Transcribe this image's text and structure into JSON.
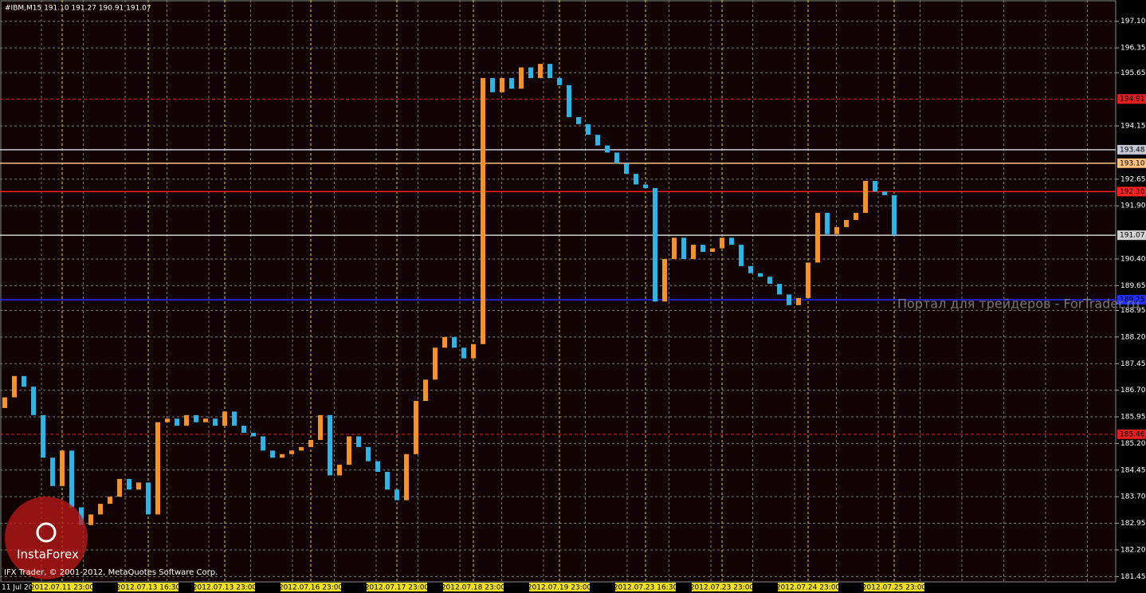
{
  "chart_data": {
    "type": "candlestick",
    "title": "#IBM,M15  191.10 191.27 190.91 191.07",
    "watermark": "Портал для трейдеров - ForTrader.ru",
    "footer": "IFX Trader, © 2001-2012, MetaQuotes Software Corp.",
    "logo": "InstaForex",
    "up_color": "#f7931e",
    "down_color": "#29b6e8",
    "grid": true,
    "ylim": [
      181.3,
      197.7
    ],
    "yticks": [
      {
        "value": 197.1,
        "label": "197.10"
      },
      196.35,
      195.65,
      194.15,
      192.65,
      {
        "value": 191.9,
        "label": "191.90"
      },
      {
        "value": 190.4,
        "label": "190.40"
      },
      189.65,
      188.95,
      {
        "value": 188.2,
        "label": "188.20"
      },
      187.45,
      {
        "value": 186.7,
        "label": "186.70"
      },
      185.95,
      {
        "value": 185.2,
        "label": "185.20"
      },
      184.45,
      {
        "value": 183.7,
        "label": "183.70"
      },
      182.95,
      {
        "value": 182.2,
        "label": "182.20"
      },
      181.45
    ],
    "levels": [
      {
        "value": 194.91,
        "color": "#e02020",
        "dashed": true
      },
      {
        "value": 193.48,
        "color": "#c8c8d8",
        "dashed": false
      },
      {
        "value": 193.1,
        "label": "193.10",
        "color": "#ffc080",
        "dashed": false
      },
      {
        "value": 192.3,
        "label": "192.30",
        "color": "#ff2020",
        "dashed": false
      },
      {
        "value": 191.07,
        "color": "#d0d0d0",
        "dashed": false
      },
      {
        "value": 189.25,
        "color": "#2030ff",
        "dashed": false
      },
      {
        "value": 185.46,
        "color": "#e02020",
        "dashed": true
      }
    ],
    "categories": [
      "11 Jul 2012",
      null,
      null,
      null,
      null,
      null,
      "2012.07.11 23:00",
      null,
      null,
      null,
      null,
      null,
      null,
      null,
      null,
      "2012.07.13 16:30",
      null,
      null,
      null,
      null,
      null,
      null,
      null,
      "2012.07.13 23:00",
      null,
      null,
      null,
      null,
      null,
      null,
      null,
      null,
      "2012.07.16 23:00",
      null,
      null,
      null,
      null,
      null,
      null,
      null,
      null,
      "2012.07.17 23:00",
      null,
      null,
      null,
      null,
      null,
      null,
      null,
      "2012.07.18 23:00",
      null,
      null,
      null,
      null,
      null,
      null,
      null,
      null,
      "2012.07.19 23:00",
      null,
      null,
      null,
      null,
      null,
      null,
      null,
      null,
      "2012.07.23 16:30",
      null,
      null,
      null,
      null,
      null,
      null,
      null,
      "2012.07.23 23:00",
      null,
      null,
      null,
      null,
      null,
      null,
      null,
      null,
      "2012.07.24 23:00",
      null,
      null,
      null,
      null,
      null,
      null,
      null,
      null,
      "2012.07.25 23:00"
    ],
    "open": [
      186.2,
      186.5,
      187.1,
      186.8,
      186.0,
      184.8,
      184.0,
      185.0,
      183.4,
      182.9,
      183.2,
      183.5,
      183.7,
      184.2,
      183.9,
      184.1,
      183.2,
      185.8,
      185.9,
      185.7,
      186.0,
      185.8,
      185.9,
      185.7,
      186.1,
      185.7,
      185.5,
      185.4,
      185.0,
      184.8,
      184.9,
      185.0,
      185.1,
      185.3,
      186.0,
      184.3,
      184.6,
      185.4,
      185.1,
      184.7,
      184.4,
      183.9,
      183.6,
      184.9,
      186.4,
      187.0,
      187.9,
      188.2,
      187.9,
      187.6,
      188.0,
      195.5,
      195.1,
      195.5,
      195.2,
      195.8,
      195.5,
      195.9,
      195.5,
      195.3,
      194.4,
      194.2,
      193.9,
      193.6,
      193.4,
      193.1,
      192.8,
      192.5,
      192.4,
      189.2,
      190.4,
      191.0,
      190.4,
      190.8,
      190.6,
      190.7,
      191.0,
      190.8,
      190.2,
      190.0,
      189.9,
      189.7,
      189.4,
      189.1,
      189.3,
      190.3,
      191.7,
      191.1,
      191.3,
      191.5,
      191.7,
      192.6,
      192.3,
      192.2
    ],
    "close": [
      186.5,
      187.1,
      186.8,
      186.0,
      184.8,
      184.0,
      185.0,
      183.4,
      182.9,
      183.2,
      183.5,
      183.7,
      184.2,
      183.9,
      184.1,
      183.2,
      185.8,
      185.9,
      185.7,
      186.0,
      185.8,
      185.9,
      185.7,
      186.1,
      185.7,
      185.5,
      185.4,
      185.0,
      184.8,
      184.9,
      185.0,
      185.1,
      185.3,
      186.0,
      184.3,
      184.6,
      185.4,
      185.1,
      184.7,
      184.4,
      183.9,
      183.6,
      184.9,
      186.4,
      187.0,
      187.9,
      188.2,
      187.9,
      187.6,
      188.0,
      195.5,
      195.1,
      195.5,
      195.2,
      195.8,
      195.5,
      195.9,
      195.5,
      195.3,
      194.4,
      194.2,
      193.9,
      193.6,
      193.4,
      193.1,
      192.8,
      192.5,
      192.4,
      189.2,
      190.4,
      191.0,
      190.4,
      190.8,
      190.6,
      190.7,
      191.0,
      190.8,
      190.2,
      190.0,
      189.9,
      189.7,
      189.4,
      189.1,
      189.3,
      190.3,
      191.7,
      191.1,
      191.3,
      191.5,
      191.7,
      192.6,
      192.3,
      192.2,
      191.07
    ]
  }
}
